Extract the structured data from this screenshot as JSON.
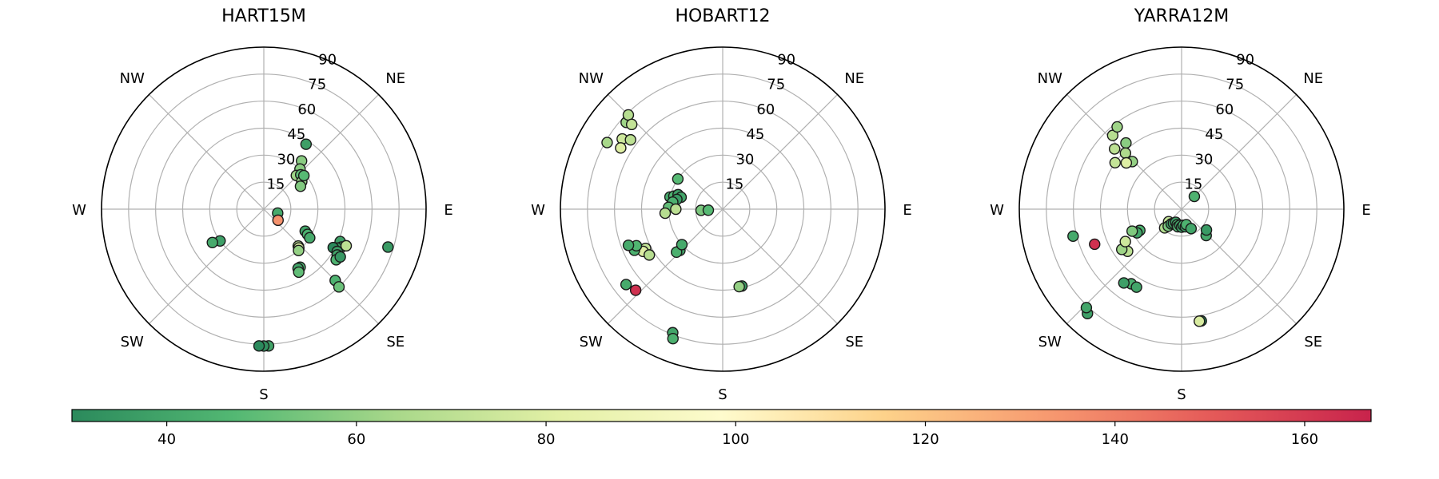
{
  "colors": {
    "grid": "#b0b0b0",
    "outline": "#000000",
    "marker_edge": "#1a1a1a",
    "colormap_stops": [
      "#2b8a5c",
      "#53b873",
      "#a9d88a",
      "#e3f0a6",
      "#fefbcd",
      "#fdd28a",
      "#f79a70",
      "#e55b59",
      "#c8234c"
    ]
  },
  "chart_data": [
    {
      "type": "scatter",
      "coordinate_system": "polar",
      "title": "HART15M",
      "radial_axis": "elevation",
      "r_ticks": [
        "15",
        "30",
        "45",
        "60",
        "75",
        "90"
      ],
      "r_range_deg": [
        0,
        90
      ],
      "direction_labels": [
        "NE",
        "E",
        "SE",
        "S",
        "SW",
        "W",
        "NW"
      ],
      "grid": true,
      "points": [
        {
          "az": 33,
          "el": 43,
          "v": 38
        },
        {
          "az": 38,
          "el": 34,
          "v": 58
        },
        {
          "az": 42,
          "el": 30,
          "v": 58
        },
        {
          "az": 44,
          "el": 26,
          "v": 62
        },
        {
          "az": 47,
          "el": 28,
          "v": 50
        },
        {
          "az": 54,
          "el": 26,
          "v": 60
        },
        {
          "az": 58,
          "el": 24,
          "v": 56
        },
        {
          "az": 50,
          "el": 29,
          "v": 48
        },
        {
          "az": 106,
          "el": 8,
          "v": 42
        },
        {
          "az": 128,
          "el": 10,
          "v": 135
        },
        {
          "az": 118,
          "el": 26,
          "v": 40
        },
        {
          "az": 120,
          "el": 28,
          "v": 44
        },
        {
          "az": 122,
          "el": 30,
          "v": 42
        },
        {
          "az": 137,
          "el": 28,
          "v": 70
        },
        {
          "az": 138,
          "el": 29,
          "v": 78
        },
        {
          "az": 140,
          "el": 30,
          "v": 60
        },
        {
          "az": 148,
          "el": 38,
          "v": 44
        },
        {
          "az": 150,
          "el": 38,
          "v": 40
        },
        {
          "az": 151,
          "el": 40,
          "v": 50
        },
        {
          "az": 113,
          "el": 46,
          "v": 38
        },
        {
          "az": 116,
          "el": 48,
          "v": 42
        },
        {
          "az": 118,
          "el": 46,
          "v": 36
        },
        {
          "az": 119,
          "el": 44,
          "v": 30
        },
        {
          "az": 120,
          "el": 47,
          "v": 38
        },
        {
          "az": 122,
          "el": 48,
          "v": 40
        },
        {
          "az": 125,
          "el": 49,
          "v": 45
        },
        {
          "az": 122,
          "el": 50,
          "v": 35
        },
        {
          "az": 114,
          "el": 50,
          "v": 70
        },
        {
          "az": 107,
          "el": 72,
          "v": 36
        },
        {
          "az": 135,
          "el": 56,
          "v": 45
        },
        {
          "az": 136,
          "el": 60,
          "v": 52
        },
        {
          "az": 178,
          "el": 76,
          "v": 40
        },
        {
          "az": 180,
          "el": 76,
          "v": 33
        },
        {
          "az": 182,
          "el": 76,
          "v": 30
        },
        {
          "az": 234,
          "el": 30,
          "v": 38
        },
        {
          "az": 237,
          "el": 34,
          "v": 42
        }
      ]
    },
    {
      "type": "scatter",
      "coordinate_system": "polar",
      "title": "HOBART12",
      "radial_axis": "elevation",
      "r_ticks": [
        "15",
        "30",
        "45",
        "60",
        "75",
        "90"
      ],
      "r_range_deg": [
        0,
        90
      ],
      "direction_labels": [
        "NE",
        "E",
        "SE",
        "S",
        "SW",
        "W",
        "NW"
      ],
      "grid": true,
      "points": [
        {
          "az": 312,
          "el": 72,
          "v": 62
        },
        {
          "az": 315,
          "el": 74,
          "v": 68
        },
        {
          "az": 300,
          "el": 74,
          "v": 64
        },
        {
          "az": 305,
          "el": 68,
          "v": 75
        },
        {
          "az": 301,
          "el": 66,
          "v": 80
        },
        {
          "az": 307,
          "el": 64,
          "v": 70
        },
        {
          "az": 313,
          "el": 69,
          "v": 72
        },
        {
          "az": 304,
          "el": 30,
          "v": 48
        },
        {
          "az": 283,
          "el": 30,
          "v": 42
        },
        {
          "az": 285,
          "el": 28,
          "v": 45
        },
        {
          "az": 288,
          "el": 26,
          "v": 38
        },
        {
          "az": 286,
          "el": 24,
          "v": 40
        },
        {
          "az": 282,
          "el": 26,
          "v": 36
        },
        {
          "az": 278,
          "el": 28,
          "v": 44
        },
        {
          "az": 272,
          "el": 30,
          "v": 50
        },
        {
          "az": 270,
          "el": 26,
          "v": 70
        },
        {
          "az": 266,
          "el": 32,
          "v": 68
        },
        {
          "az": 267,
          "el": 12,
          "v": 55
        },
        {
          "az": 266,
          "el": 8,
          "v": 48
        },
        {
          "az": 243,
          "el": 48,
          "v": 72
        },
        {
          "az": 242,
          "el": 50,
          "v": 80
        },
        {
          "az": 238,
          "el": 48,
          "v": 68
        },
        {
          "az": 245,
          "el": 54,
          "v": 44
        },
        {
          "az": 247,
          "el": 52,
          "v": 46
        },
        {
          "az": 249,
          "el": 56,
          "v": 42
        },
        {
          "az": 226,
          "el": 33,
          "v": 40
        },
        {
          "az": 227,
          "el": 35,
          "v": 44
        },
        {
          "az": 229,
          "el": 30,
          "v": 42
        },
        {
          "az": 232,
          "el": 68,
          "v": 42
        },
        {
          "az": 227,
          "el": 66,
          "v": 163
        },
        {
          "az": 202,
          "el": 74,
          "v": 40
        },
        {
          "az": 201,
          "el": 77,
          "v": 44
        },
        {
          "az": 166,
          "el": 44,
          "v": 36
        },
        {
          "az": 168,
          "el": 44,
          "v": 60
        }
      ]
    },
    {
      "type": "scatter",
      "coordinate_system": "polar",
      "title": "YARRA12M",
      "radial_axis": "elevation",
      "r_ticks": [
        "15",
        "30",
        "45",
        "60",
        "75",
        "90"
      ],
      "r_range_deg": [
        0,
        90
      ],
      "direction_labels": [
        "NE",
        "E",
        "SE",
        "S",
        "SW",
        "W",
        "NW"
      ],
      "grid": true,
      "points": [
        {
          "az": 317,
          "el": 56,
          "v": 68
        },
        {
          "az": 322,
          "el": 58,
          "v": 62
        },
        {
          "az": 320,
          "el": 48,
          "v": 58
        },
        {
          "az": 315,
          "el": 44,
          "v": 66
        },
        {
          "az": 312,
          "el": 50,
          "v": 70
        },
        {
          "az": 314,
          "el": 38,
          "v": 60
        },
        {
          "az": 310,
          "el": 40,
          "v": 80
        },
        {
          "az": 305,
          "el": 45,
          "v": 72
        },
        {
          "az": 45,
          "el": 10,
          "v": 45
        },
        {
          "az": 243,
          "el": 26,
          "v": 44
        },
        {
          "az": 242,
          "el": 28,
          "v": 40
        },
        {
          "az": 246,
          "el": 30,
          "v": 56
        },
        {
          "az": 232,
          "el": 38,
          "v": 70
        },
        {
          "az": 236,
          "el": 40,
          "v": 62
        },
        {
          "az": 240,
          "el": 36,
          "v": 75
        },
        {
          "az": 256,
          "el": 62,
          "v": 42
        },
        {
          "az": 248,
          "el": 52,
          "v": 163
        },
        {
          "az": 214,
          "el": 50,
          "v": 44
        },
        {
          "az": 218,
          "el": 52,
          "v": 38
        },
        {
          "az": 210,
          "el": 50,
          "v": 40
        },
        {
          "az": 222,
          "el": 78,
          "v": 38
        },
        {
          "az": 224,
          "el": 76,
          "v": 40
        },
        {
          "az": 222,
          "el": 14,
          "v": 66
        },
        {
          "az": 226,
          "el": 10,
          "v": 72
        },
        {
          "az": 218,
          "el": 12,
          "v": 55
        },
        {
          "az": 215,
          "el": 10,
          "v": 40
        },
        {
          "az": 210,
          "el": 9,
          "v": 42
        },
        {
          "az": 204,
          "el": 8,
          "v": 38
        },
        {
          "az": 196,
          "el": 9,
          "v": 45
        },
        {
          "az": 192,
          "el": 10,
          "v": 48
        },
        {
          "az": 186,
          "el": 9,
          "v": 40
        },
        {
          "az": 180,
          "el": 10,
          "v": 38
        },
        {
          "az": 174,
          "el": 9,
          "v": 42
        },
        {
          "az": 168,
          "el": 10,
          "v": 38
        },
        {
          "az": 163,
          "el": 9,
          "v": 45
        },
        {
          "az": 154,
          "el": 12,
          "v": 40
        },
        {
          "az": 137,
          "el": 20,
          "v": 42
        },
        {
          "az": 130,
          "el": 18,
          "v": 36
        },
        {
          "az": 170,
          "el": 63,
          "v": 30
        },
        {
          "az": 171,
          "el": 63,
          "v": 78
        }
      ]
    }
  ],
  "colorbar": {
    "range": [
      30,
      167
    ],
    "ticks": [
      "40",
      "60",
      "80",
      "100",
      "120",
      "140",
      "160"
    ]
  }
}
